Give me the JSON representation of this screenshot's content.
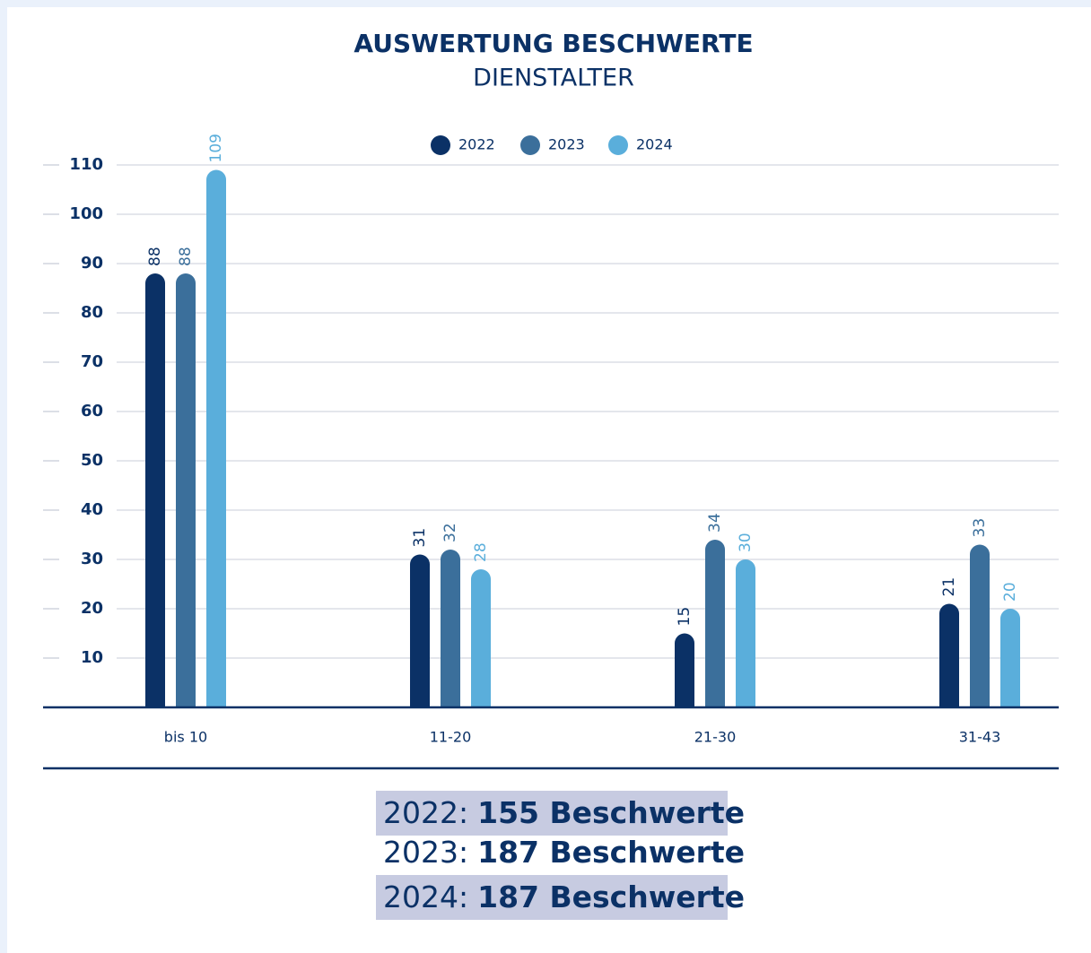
{
  "chart_data": {
    "type": "bar",
    "title": "AUSWERTUNG BESCHWERTE",
    "subtitle": "DIENSTALTER",
    "categories": [
      "bis 10",
      "11-20",
      "21-30",
      "31-43"
    ],
    "series": [
      {
        "name": "2022",
        "color": "#0b3166",
        "values": [
          88,
          31,
          15,
          21
        ]
      },
      {
        "name": "2023",
        "color": "#3b6f9b",
        "values": [
          88,
          32,
          34,
          33
        ]
      },
      {
        "name": "2024",
        "color": "#5aaedb",
        "values": [
          109,
          28,
          30,
          20
        ]
      }
    ],
    "ylim": [
      0,
      110
    ],
    "yticks": [
      10,
      20,
      30,
      40,
      50,
      60,
      70,
      80,
      90,
      100,
      110
    ],
    "grid": true,
    "legend": "top"
  },
  "summary": [
    {
      "year": "2022:",
      "count": "155 Beschwerte",
      "highlight": true
    },
    {
      "year": "2023:",
      "count": "187 Beschwerte",
      "highlight": false
    },
    {
      "year": "2024:",
      "count": "187 Beschwerte",
      "highlight": true
    }
  ]
}
